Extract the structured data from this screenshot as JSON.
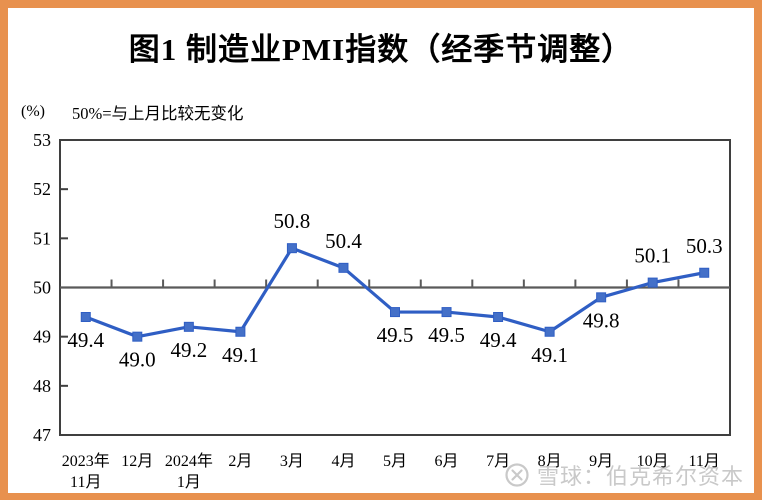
{
  "frame": {
    "border_color": "#E8914E",
    "background": "#FFFFFF"
  },
  "title": "图1 制造业PMI指数（经季节调整）",
  "unit_label": "(%)",
  "note": "50%=与上月比较无变化",
  "watermark": {
    "icon": "xueqiu-circle-logo",
    "text": "雪球：伯克希尔资本",
    "color": "#c9c9c9"
  },
  "chart_data": {
    "type": "line",
    "title": "图1 制造业PMI指数（经季节调整）",
    "xlabel": "",
    "ylabel": "(%)",
    "categories": [
      "2023年\n11月",
      "12月",
      "2024年\n1月",
      "2月",
      "3月",
      "4月",
      "5月",
      "6月",
      "7月",
      "8月",
      "9月",
      "10月",
      "11月"
    ],
    "series": [
      {
        "name": "制造业PMI指数",
        "values": [
          49.4,
          49.0,
          49.2,
          49.1,
          50.8,
          50.4,
          49.5,
          49.5,
          49.4,
          49.1,
          49.8,
          50.1,
          50.3
        ]
      }
    ],
    "point_labels": [
      "49.4",
      "49.0",
      "49.2",
      "49.1",
      "50.8",
      "50.4",
      "49.5",
      "49.5",
      "49.4",
      "49.1",
      "49.8",
      "50.1",
      "50.3"
    ],
    "label_positions": [
      "below",
      "below",
      "below",
      "below",
      "above",
      "above",
      "below",
      "below",
      "below",
      "below",
      "below",
      "above",
      "above"
    ],
    "ylim": [
      47,
      53
    ],
    "yticks": [
      47,
      48,
      49,
      50,
      51,
      52,
      53
    ],
    "reference_line": 50,
    "grid": false,
    "legend": "none",
    "line_color": "#2F5EC4",
    "marker": "square",
    "marker_color": "#4470C8",
    "axis_color": "#3F3F3F",
    "reference_line_color": "#5A5A5A"
  }
}
